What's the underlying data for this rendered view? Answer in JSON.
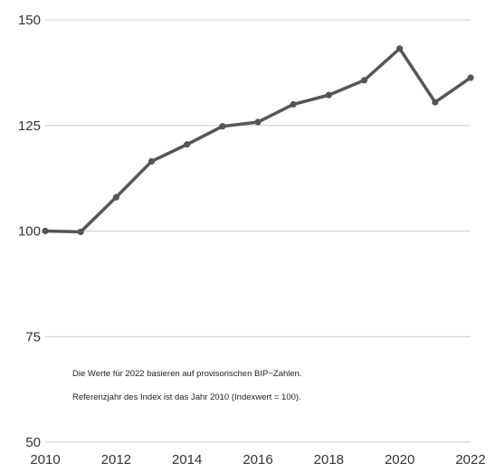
{
  "chart_data": {
    "type": "line",
    "title": "",
    "xlabel": "",
    "ylabel": "",
    "xlim": [
      2010,
      2022
    ],
    "ylim": [
      50,
      150
    ],
    "x_ticks": [
      "2010",
      "2012",
      "2014",
      "2016",
      "2018",
      "2020",
      "2022"
    ],
    "y_ticks": [
      "50",
      "75",
      "100",
      "125",
      "150"
    ],
    "grid": "horizontal",
    "x": [
      2010,
      2011,
      2012,
      2013,
      2014,
      2015,
      2016,
      2017,
      2018,
      2019,
      2020,
      2021,
      2022
    ],
    "series": [
      {
        "values": [
          100,
          99.8,
          108,
          116.5,
          120.5,
          124.8,
          125.8,
          130,
          132.2,
          135.7,
          143.2,
          130.5,
          136.3
        ]
      }
    ],
    "annotation": [
      "Die Werte für 2022 basieren auf provisorischen BIP−Zahlen.",
      "Referenzjahr des Index ist das Jahr 2010 (Indexwert = 100)."
    ],
    "colors": {
      "line": "#555555",
      "grid": "#cccccc",
      "text": "#333333"
    }
  }
}
